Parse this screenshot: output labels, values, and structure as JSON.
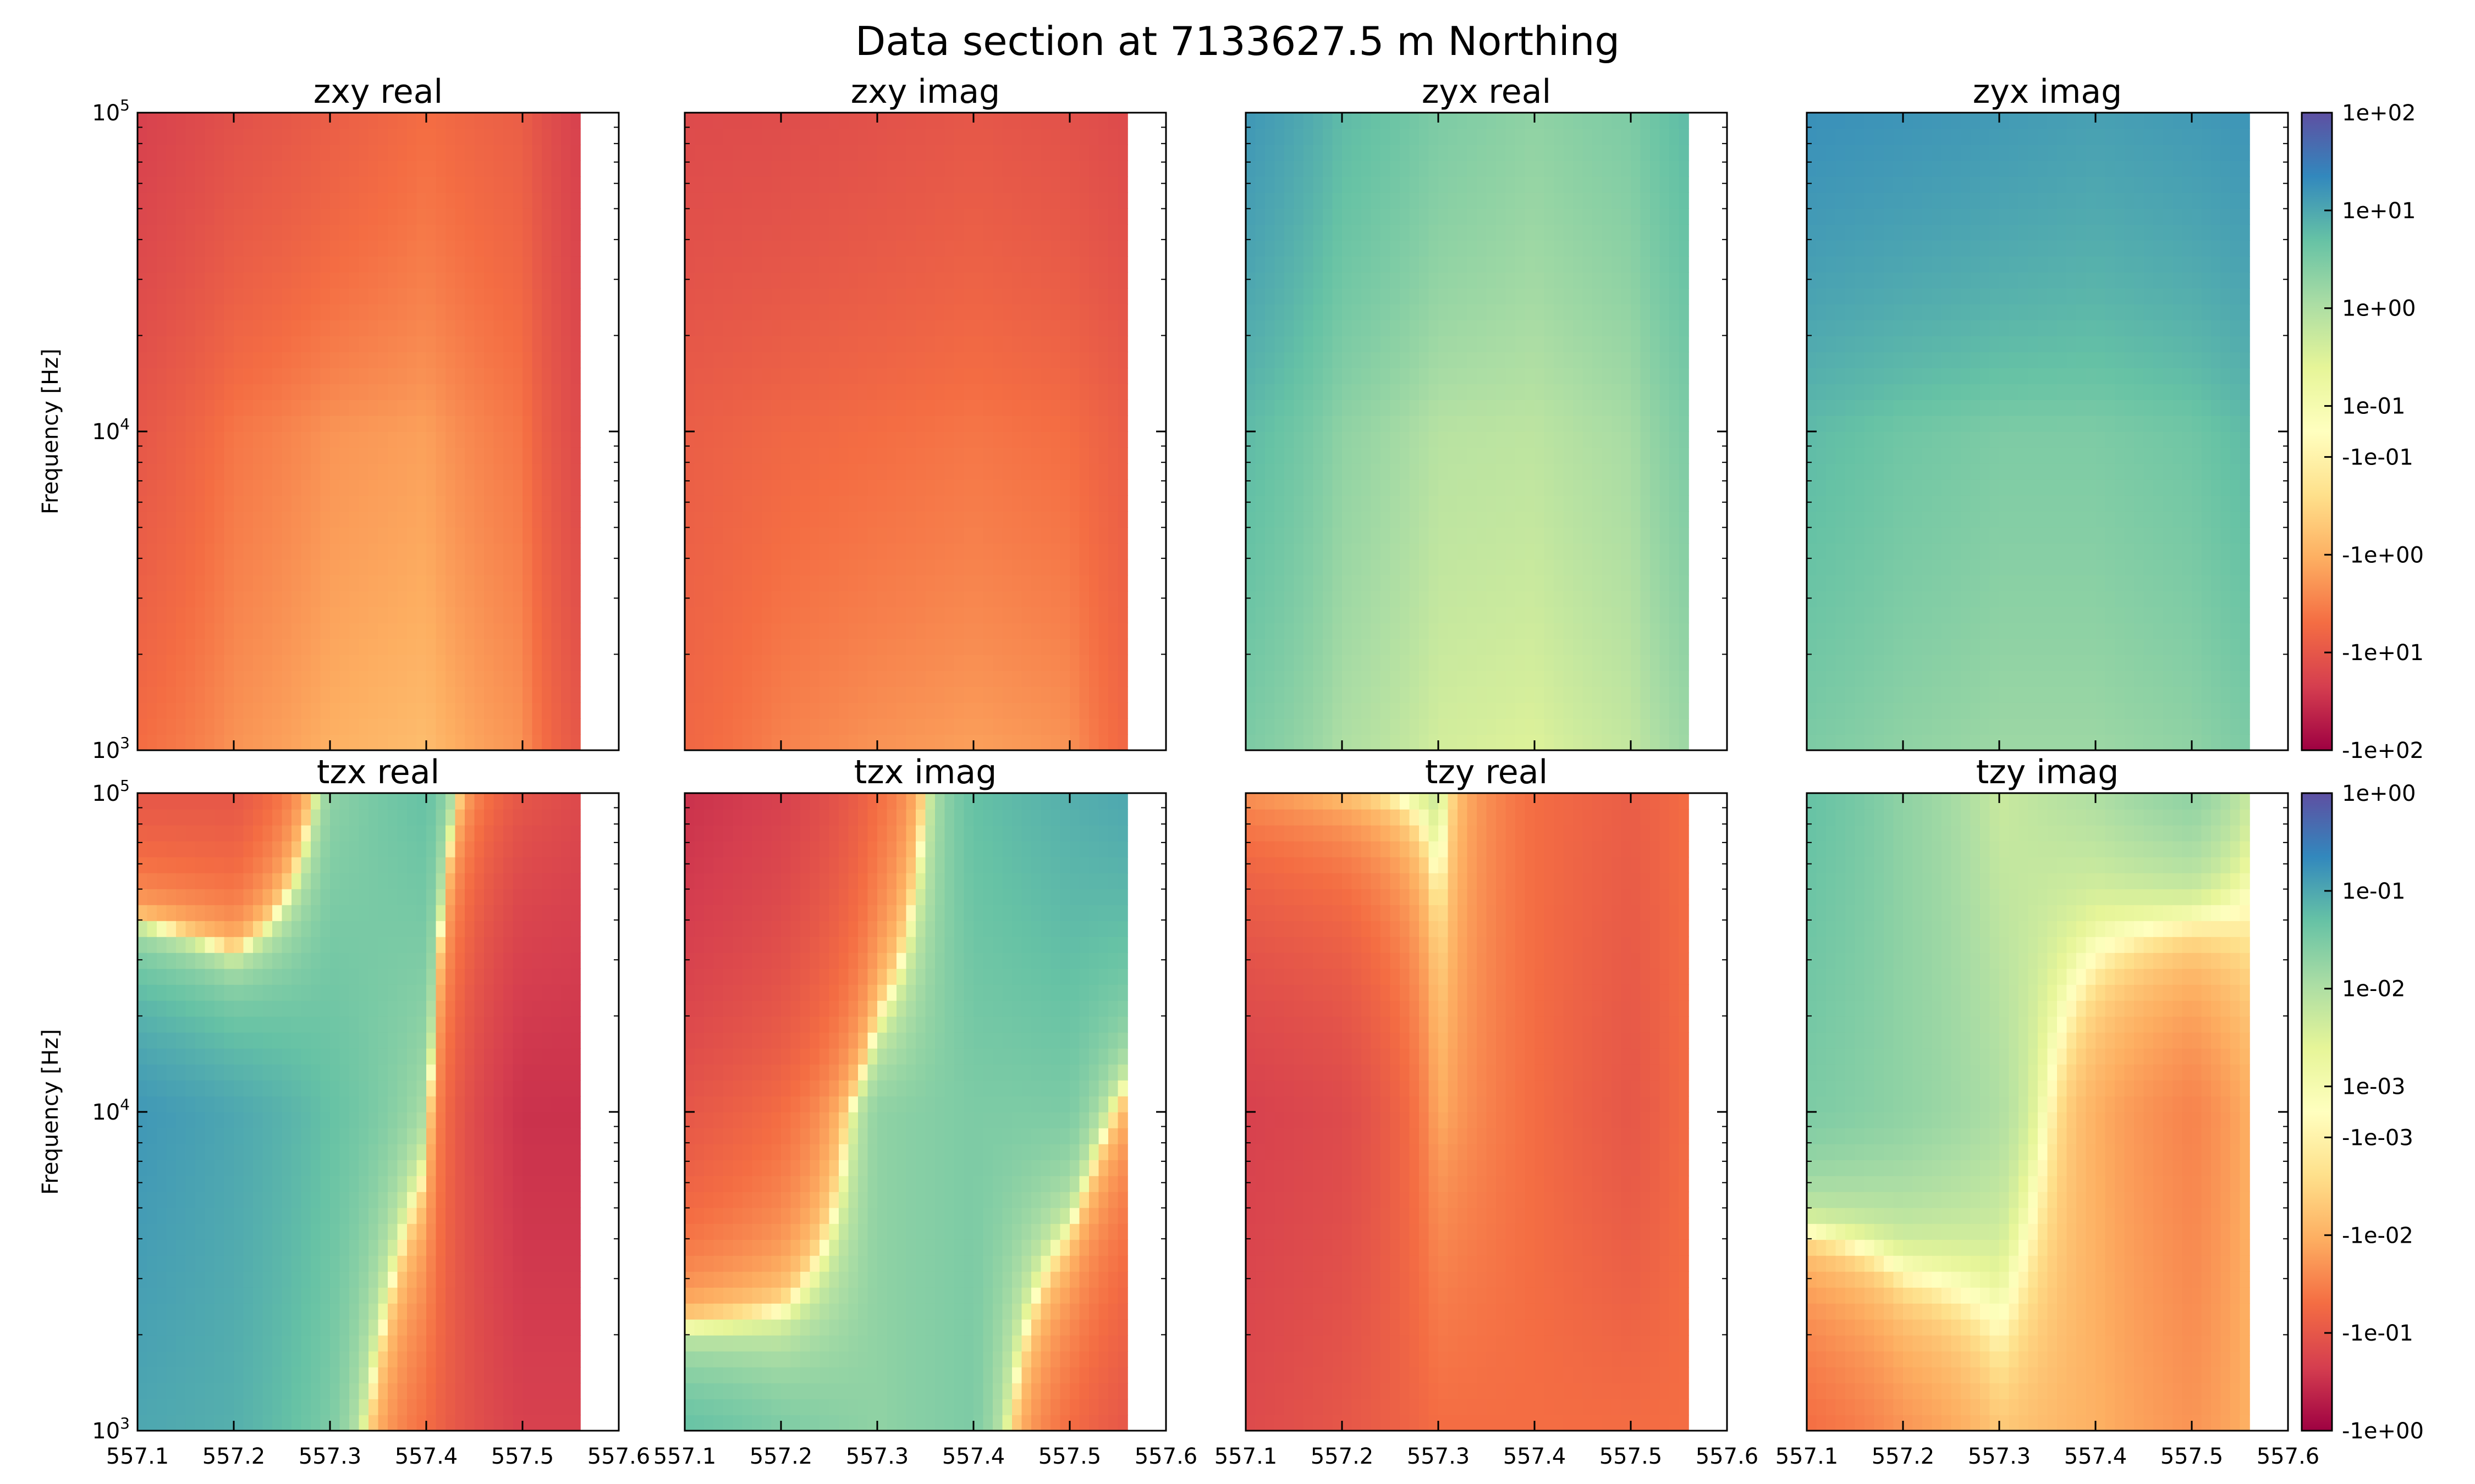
{
  "figure": {
    "title": "Data section at 7133627.5 m Northing"
  },
  "axes": {
    "ylabel": "Frequency [Hz]",
    "x_ticks": [
      "557.1",
      "557.2",
      "557.3",
      "557.4",
      "557.5",
      "557.6"
    ],
    "x_range": [
      557.1,
      557.6
    ],
    "data_x_range": [
      557.1,
      557.56
    ],
    "y_scale": "log",
    "y_range": [
      1000,
      100000
    ],
    "y_ticks": [
      {
        "base": "10",
        "exp": "3"
      },
      {
        "base": "10",
        "exp": "4"
      },
      {
        "base": "10",
        "exp": "5"
      }
    ]
  },
  "colorbars": [
    {
      "colormap": "Spectral",
      "ticks": [
        "1e+02",
        "1e+01",
        "1e+00",
        "1e-01",
        "-1e-01",
        "-1e+00",
        "-1e+01",
        "-1e+02"
      ]
    },
    {
      "colormap": "Spectral",
      "ticks": [
        "1e+00",
        "1e-01",
        "1e-02",
        "1e-03",
        "-1e-03",
        "-1e-02",
        "-1e-01",
        "-1e+00"
      ]
    }
  ],
  "chart_data": [
    {
      "type": "heatmap",
      "title": "zxy real",
      "row": 0,
      "col": 0,
      "colorbar": 0,
      "x": [
        557.1,
        557.2,
        557.3,
        557.4,
        557.5,
        557.56
      ],
      "y": [
        1000,
        10000,
        100000
      ],
      "z": [
        [
          -5,
          -2,
          -1,
          -0.7,
          -2,
          -10
        ],
        [
          -10,
          -4,
          -2,
          -1.5,
          -4,
          -15
        ],
        [
          -20,
          -12,
          -8,
          -5,
          -8,
          -20
        ]
      ]
    },
    {
      "type": "heatmap",
      "title": "zxy imag",
      "row": 0,
      "col": 1,
      "colorbar": 0,
      "x": [
        557.1,
        557.2,
        557.3,
        557.4,
        557.5,
        557.56
      ],
      "y": [
        1000,
        10000,
        100000
      ],
      "z": [
        [
          -6,
          -3,
          -2,
          -1.5,
          -2,
          -6
        ],
        [
          -8,
          -6,
          -5,
          -4,
          -5,
          -8
        ],
        [
          -15,
          -14,
          -12,
          -10,
          -12,
          -15
        ]
      ]
    },
    {
      "type": "heatmap",
      "title": "zyx real",
      "row": 0,
      "col": 2,
      "colorbar": 0,
      "x": [
        557.1,
        557.2,
        557.3,
        557.4,
        557.5,
        557.56
      ],
      "y": [
        1000,
        10000,
        100000
      ],
      "z": [
        [
          3,
          1,
          0.4,
          0.3,
          0.6,
          1.5
        ],
        [
          6,
          2,
          0.8,
          0.7,
          1.2,
          3
        ],
        [
          15,
          6,
          3,
          2,
          3,
          6
        ]
      ]
    },
    {
      "type": "heatmap",
      "title": "zyx imag",
      "row": 0,
      "col": 3,
      "colorbar": 0,
      "x": [
        557.1,
        557.2,
        557.3,
        557.4,
        557.5,
        557.56
      ],
      "y": [
        1000,
        10000,
        100000
      ],
      "z": [
        [
          3,
          2,
          1.5,
          1.5,
          2,
          3
        ],
        [
          6,
          4,
          3,
          3,
          4,
          6
        ],
        [
          18,
          16,
          14,
          12,
          14,
          16
        ]
      ]
    },
    {
      "type": "heatmap",
      "title": "tzx real",
      "row": 1,
      "col": 0,
      "colorbar": 1,
      "x": [
        557.1,
        557.2,
        557.3,
        557.4,
        557.5,
        557.56
      ],
      "y": [
        1000,
        10000,
        100000
      ],
      "z": [
        [
          0.1,
          0.08,
          0.03,
          -0.05,
          -0.2,
          -0.2
        ],
        [
          0.15,
          0.1,
          0.05,
          0.01,
          -0.3,
          -0.3
        ],
        [
          -0.1,
          -0.1,
          0.02,
          0.05,
          -0.1,
          -0.15
        ]
      ]
    },
    {
      "type": "heatmap",
      "title": "tzx imag",
      "row": 1,
      "col": 1,
      "colorbar": 1,
      "x": [
        557.1,
        557.2,
        557.3,
        557.4,
        557.5,
        557.56
      ],
      "y": [
        1000,
        10000,
        100000
      ],
      "z": [
        [
          0.05,
          0.03,
          0.02,
          0.03,
          -0.05,
          -0.1
        ],
        [
          -0.1,
          -0.05,
          0.02,
          0.03,
          0.03,
          -0.01
        ],
        [
          -0.3,
          -0.2,
          -0.05,
          0.05,
          0.08,
          0.1
        ]
      ]
    },
    {
      "type": "heatmap",
      "title": "tzy real",
      "row": 1,
      "col": 2,
      "colorbar": 1,
      "x": [
        557.1,
        557.2,
        557.3,
        557.4,
        557.5,
        557.56
      ],
      "y": [
        1000,
        10000,
        100000
      ],
      "z": [
        [
          -0.15,
          -0.1,
          -0.05,
          -0.05,
          -0.05,
          -0.05
        ],
        [
          -0.2,
          -0.15,
          -0.01,
          -0.05,
          -0.1,
          -0.05
        ],
        [
          -0.02,
          -0.005,
          0.005,
          -0.05,
          -0.08,
          -0.05
        ]
      ]
    },
    {
      "type": "heatmap",
      "title": "tzy imag",
      "row": 1,
      "col": 3,
      "colorbar": 1,
      "x": [
        557.1,
        557.2,
        557.3,
        557.4,
        557.5,
        557.56
      ],
      "y": [
        1000,
        10000,
        100000
      ],
      "z": [
        [
          -0.05,
          -0.02,
          -0.005,
          -0.01,
          -0.02,
          -0.01
        ],
        [
          0.03,
          0.02,
          0.01,
          -0.01,
          -0.03,
          -0.01
        ],
        [
          0.05,
          0.02,
          0.005,
          0.01,
          0.02,
          0.005
        ]
      ]
    }
  ]
}
